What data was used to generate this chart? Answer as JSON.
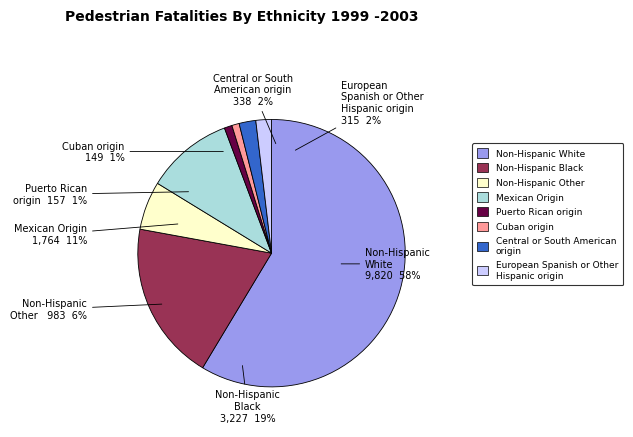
{
  "title": "Pedestrian Fatalities By Ethnicity 1999 -2003",
  "legend_labels": [
    "Non-Hispanic White",
    "Non-Hispanic Black",
    "Non-Hispanic Other",
    "Mexican Origin",
    "Puerto Rican origin",
    "Cuban origin",
    "Central or South American\norigin",
    "European Spanish or Other\nHispanic origin"
  ],
  "values": [
    9820,
    3227,
    983,
    1764,
    157,
    149,
    338,
    315
  ],
  "colors": [
    "#9999ee",
    "#993355",
    "#ffffcc",
    "#aadddd",
    "#660044",
    "#ff9999",
    "#3366cc",
    "#ccccff"
  ],
  "background_color": "#ffffff",
  "title_fontsize": 10,
  "label_fontsize": 7
}
